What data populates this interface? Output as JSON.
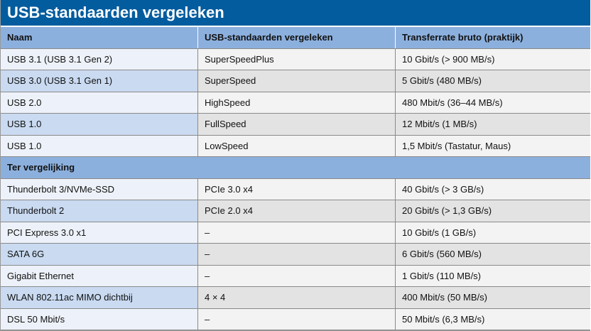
{
  "title": "USB-standaarden vergeleken",
  "headers": [
    "Naam",
    "USB-standaarden vergeleken",
    "Transferrate bruto (praktijk)"
  ],
  "rows": [
    [
      "USB 3.1 (USB 3.1 Gen 2)",
      "SuperSpeedPlus",
      "10 Gbit/s (> 900 MB/s)"
    ],
    [
      "USB 3.0 (USB 3.1 Gen 1)",
      "SuperSpeed",
      "5 Gbit/s (480 MB/s)"
    ],
    [
      "USB 2.0",
      "HighSpeed",
      "480 Mbit/s (36–44 MB/s)"
    ],
    [
      "USB 1.0",
      "FullSpeed",
      "12 Mbit/s (1 MB/s)"
    ],
    [
      "USB 1.0",
      "LowSpeed",
      "1,5 Mbit/s (Tastatur, Maus)"
    ]
  ],
  "section": "Ter vergelijking",
  "rows2": [
    [
      "Thunderbolt 3/NVMe-SSD",
      "PCIe 3.0 x4",
      "40 Gbit/s (> 3 GB/s)"
    ],
    [
      "Thunderbolt 2",
      "PCIe 2.0 x4",
      "20 Gbit/s (> 1,3 GB/s)"
    ],
    [
      "PCI Express 3.0 x1",
      "–",
      "10 Gbit/s (1 GB/s)"
    ],
    [
      "SATA 6G",
      "–",
      "6 Gbit/s (560 MB/s)"
    ],
    [
      "Gigabit Ethernet",
      "–",
      "1 Gbit/s (110 MB/s)"
    ],
    [
      "WLAN 802.11ac MIMO dichtbij",
      "4 × 4",
      "400 Mbit/s (50 MB/s)"
    ],
    [
      "DSL 50 Mbit/s",
      "–",
      "50 Mbit/s (6,3 MB/s)"
    ]
  ]
}
